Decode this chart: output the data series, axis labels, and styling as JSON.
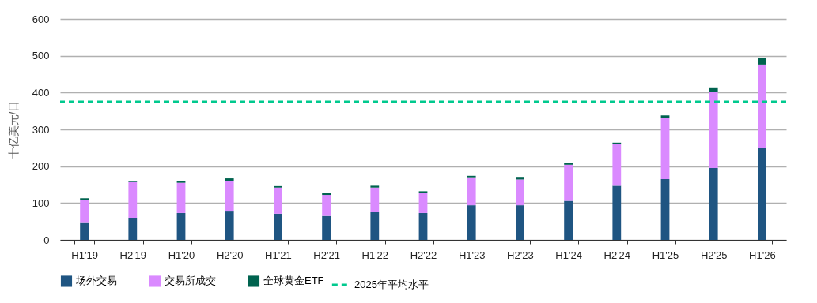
{
  "chart_data": {
    "type": "bar",
    "stacked": true,
    "ylabel": "十亿美元/日",
    "categories": [
      "H1'19",
      "H2'19",
      "H1'20",
      "H2'20",
      "H1'21",
      "H2'21",
      "H1'22",
      "H2'22",
      "H1'23",
      "H2'23",
      "H1'24",
      "H2'24",
      "H1'25",
      "H2'25",
      "H1'26"
    ],
    "series": [
      {
        "name": "场外交易",
        "color": "#1f5582",
        "values": [
          48,
          60,
          73,
          77,
          71,
          65,
          75,
          73,
          94,
          94,
          106,
          147,
          165,
          195,
          249
        ]
      },
      {
        "name": "交易所成交",
        "color": "#da8aff",
        "values": [
          61,
          97,
          82,
          83,
          71,
          57,
          67,
          55,
          76,
          70,
          98,
          113,
          165,
          207,
          227
        ]
      },
      {
        "name": "全球黄金ETF",
        "color": "#00634f",
        "values": [
          4,
          3,
          5,
          7,
          4,
          5,
          5,
          4,
          4,
          7,
          5,
          4,
          8,
          12,
          17
        ]
      }
    ],
    "ref_lines": [
      {
        "axis": "y",
        "value": 375,
        "label": "2025年平均水平",
        "color": "#00c98e",
        "line_style": "dashed"
      }
    ],
    "ylim": [
      0,
      600
    ],
    "yticks": [
      0,
      100,
      200,
      300,
      400,
      500,
      600
    ],
    "grid": "y",
    "legend": "bottom"
  }
}
